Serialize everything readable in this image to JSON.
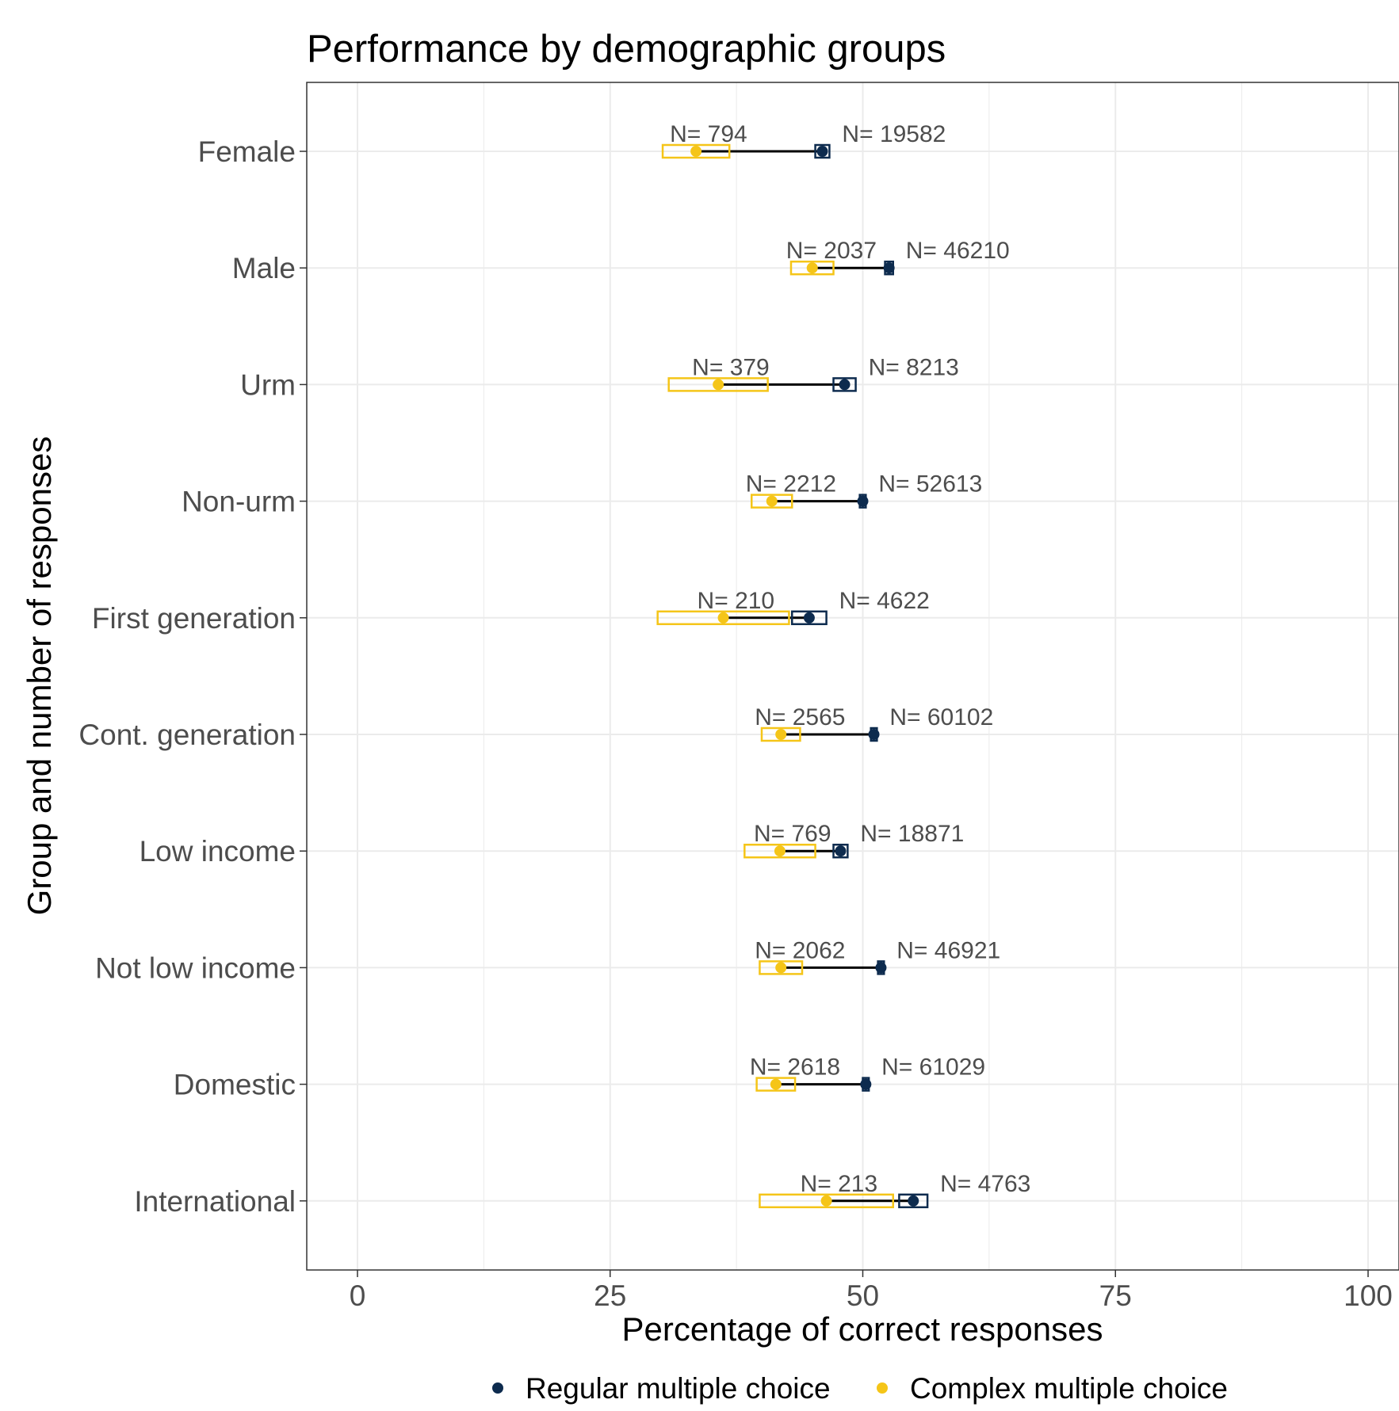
{
  "chart_data": {
    "type": "dumbbell",
    "title": "Performance by demographic groups",
    "xlabel": "Percentage of correct responses",
    "ylabel": "Group and number of responses",
    "xlim": [
      -2.5,
      102.5
    ],
    "xticks": [
      "0",
      "25",
      "50",
      "75",
      "100"
    ],
    "xtick_values": [
      0,
      25,
      50,
      75,
      100
    ],
    "grid": true,
    "legend_position": "bottom",
    "series": [
      {
        "name": "Regular multiple choice",
        "color": "#0d2b4e"
      },
      {
        "name": "Complex multiple choice",
        "color": "#f5c518"
      }
    ],
    "groups": [
      {
        "label": "Female",
        "regular": {
          "mean": 46.0,
          "ci": [
            45.3,
            46.7
          ],
          "n_label": "N= 19582"
        },
        "complex": {
          "mean": 33.5,
          "ci": [
            30.2,
            36.8
          ],
          "n_label": "N= 794"
        }
      },
      {
        "label": "Male",
        "regular": {
          "mean": 52.6,
          "ci": [
            52.2,
            53.0
          ],
          "n_label": "N= 46210"
        },
        "complex": {
          "mean": 45.0,
          "ci": [
            42.9,
            47.1
          ],
          "n_label": "N= 2037"
        }
      },
      {
        "label": "Urm",
        "regular": {
          "mean": 48.2,
          "ci": [
            47.1,
            49.3
          ],
          "n_label": "N= 8213"
        },
        "complex": {
          "mean": 35.7,
          "ci": [
            30.8,
            40.6
          ],
          "n_label": "N= 379"
        }
      },
      {
        "label": "Non-urm",
        "regular": {
          "mean": 50.0,
          "ci": [
            49.7,
            50.3
          ],
          "n_label": "N= 52613"
        },
        "complex": {
          "mean": 41.0,
          "ci": [
            39.0,
            43.0
          ],
          "n_label": "N= 2212"
        }
      },
      {
        "label": "First generation",
        "regular": {
          "mean": 44.7,
          "ci": [
            43.0,
            46.4
          ],
          "n_label": "N= 4622"
        },
        "complex": {
          "mean": 36.2,
          "ci": [
            29.7,
            42.7
          ],
          "n_label": "N= 210"
        }
      },
      {
        "label": "Cont. generation",
        "regular": {
          "mean": 51.1,
          "ci": [
            50.8,
            51.4
          ],
          "n_label": "N= 60102"
        },
        "complex": {
          "mean": 41.9,
          "ci": [
            40.0,
            43.8
          ],
          "n_label": "N= 2565"
        }
      },
      {
        "label": "Low income",
        "regular": {
          "mean": 47.8,
          "ci": [
            47.1,
            48.5
          ],
          "n_label": "N= 18871"
        },
        "complex": {
          "mean": 41.8,
          "ci": [
            38.3,
            45.3
          ],
          "n_label": "N= 769"
        }
      },
      {
        "label": "Not low income",
        "regular": {
          "mean": 51.8,
          "ci": [
            51.5,
            52.1
          ],
          "n_label": "N= 46921"
        },
        "complex": {
          "mean": 41.9,
          "ci": [
            39.8,
            44.0
          ],
          "n_label": "N= 2062"
        }
      },
      {
        "label": "Domestic",
        "regular": {
          "mean": 50.3,
          "ci": [
            50.0,
            50.6
          ],
          "n_label": "N= 61029"
        },
        "complex": {
          "mean": 41.4,
          "ci": [
            39.5,
            43.3
          ],
          "n_label": "N= 2618"
        }
      },
      {
        "label": "International",
        "regular": {
          "mean": 55.0,
          "ci": [
            53.6,
            56.4
          ],
          "n_label": "N= 4763"
        },
        "complex": {
          "mean": 46.4,
          "ci": [
            39.8,
            53.0
          ],
          "n_label": "N= 213"
        }
      }
    ]
  }
}
